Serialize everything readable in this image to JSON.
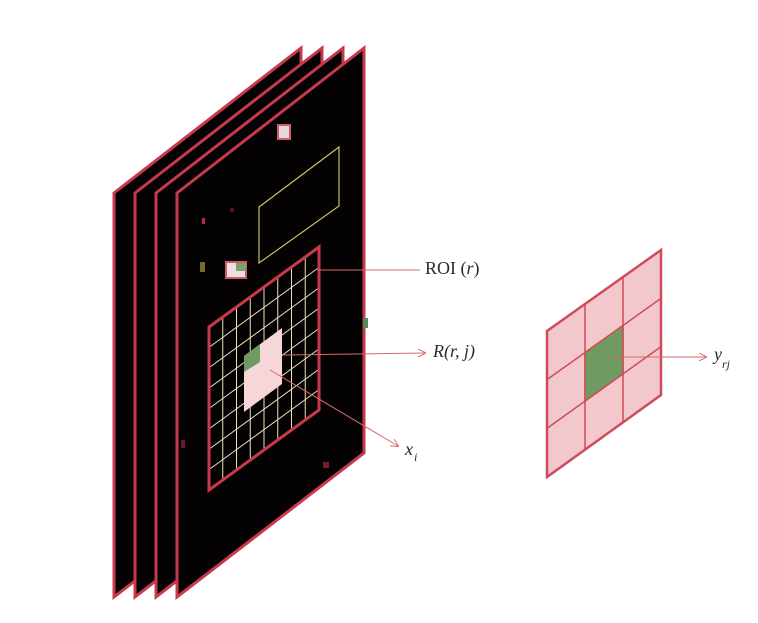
{
  "labels": {
    "roi_prefix": "ROI (",
    "roi_var": "r",
    "roi_suffix": ")",
    "region_R": "R",
    "region_args": "(r, j)",
    "x_main": "x",
    "x_sub": "i",
    "y_main": "y",
    "y_sub": "rj"
  },
  "colors": {
    "frame_border": "#c8394c",
    "frame_fill": "#050203",
    "roi_grid_outer": "#c8394c",
    "roi_grid_inner": "#e9e4b8",
    "region_fill": "#f6d6d6",
    "region_highlight": "#6f9a60",
    "pooled_fill": "#f3c8cc",
    "pooled_grid": "#cf4a5a",
    "arrow": "#d76a6a",
    "yellow_box": "#c9c45a"
  },
  "structure": {
    "frame_count": 4,
    "roi_grid_divisions": 8,
    "pooled_grid_divisions": 3
  }
}
